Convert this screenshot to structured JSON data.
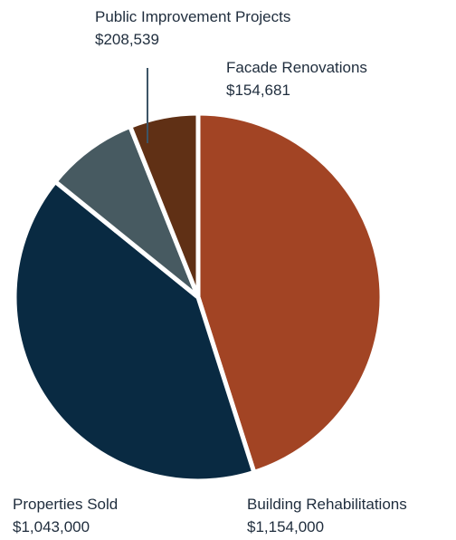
{
  "chart_data": {
    "type": "pie",
    "title": "",
    "slices": [
      {
        "label": "Building Rehabilitations",
        "value": 1154000,
        "value_text": "$1,154,000",
        "color": "#a24424"
      },
      {
        "label": "Properties Sold",
        "value": 1043000,
        "value_text": "$1,043,000",
        "color": "#092a42"
      },
      {
        "label": "Public Improvement Projects",
        "value": 208539,
        "value_text": "$208,539",
        "color": "#475a61"
      },
      {
        "label": "Facade Renovations",
        "value": 154681,
        "value_text": "$154,681",
        "color": "#603015"
      }
    ],
    "legend": "none",
    "leader_line_color": "#3d5566"
  }
}
